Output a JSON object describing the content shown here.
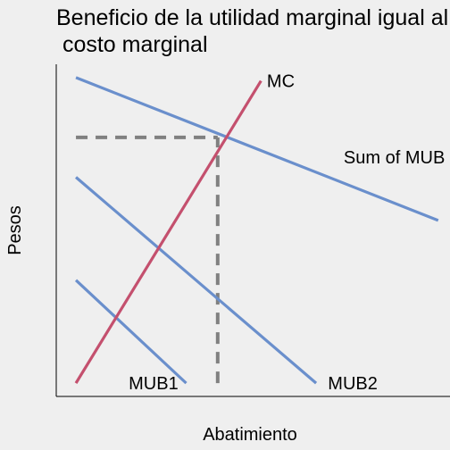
{
  "chart_data": {
    "type": "line",
    "title": "Beneficio de la utilidad marginal igual al costo marginal",
    "xlabel": "Abatimiento",
    "ylabel": "Pesos",
    "xlim": [
      0,
      10
    ],
    "ylim": [
      0,
      10
    ],
    "grid": false,
    "legend": "none",
    "colors": {
      "mub": "#6a8fcc",
      "mc": "#c4506e",
      "guide": "#808080"
    },
    "series": [
      {
        "name": "MUB1",
        "x": [
          0.5,
          3.3
        ],
        "y": [
          3.5,
          0.4
        ]
      },
      {
        "name": "MUB2",
        "x": [
          0.5,
          6.6
        ],
        "y": [
          6.6,
          0.4
        ]
      },
      {
        "name": "Sum of MUB",
        "x": [
          0.5,
          9.7
        ],
        "y": [
          9.6,
          5.3
        ]
      },
      {
        "name": "MC",
        "x": [
          0.5,
          5.2
        ],
        "y": [
          0.4,
          9.5
        ]
      }
    ],
    "annotations": [
      {
        "type": "dashed-hline",
        "y": 7.8,
        "x_from": 0.5,
        "x_to": 4.1
      },
      {
        "type": "dashed-vline",
        "x": 4.1,
        "y_from": 0.4,
        "y_to": 7.8
      }
    ]
  }
}
